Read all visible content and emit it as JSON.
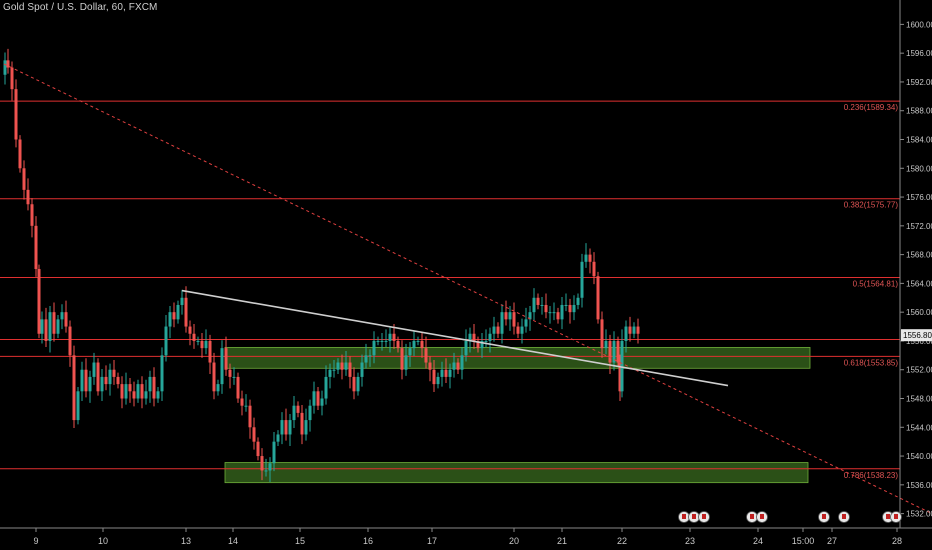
{
  "header": {
    "title": "Gold Spot / U.S. Dollar, 60, FXCM"
  },
  "colors": {
    "background": "#000000",
    "up": "#26a69a",
    "down": "#ef5350",
    "zone_fill": "#3a6b1f",
    "zone_border": "#6fae3a",
    "fib_line": "#e03030",
    "trend_line": "#cfcfcf",
    "dashed_line": "#e04040",
    "price_tag": "#e8e8e8"
  },
  "current_price": "1556.80",
  "chart_data": {
    "type": "candlestick",
    "title": "Gold Spot / U.S. Dollar, 60, FXCM",
    "ylim": [
      1530,
      1602
    ],
    "y_ticks": [
      1532,
      1536,
      1540,
      1544,
      1548,
      1552,
      1556,
      1560,
      1564,
      1568,
      1572,
      1576,
      1580,
      1584,
      1588,
      1592,
      1596,
      1600
    ],
    "x_ticks": [
      "9",
      "10",
      "13",
      "14",
      "15",
      "16",
      "17",
      "20",
      "21",
      "22",
      "23",
      "24",
      "15:00",
      "27",
      "28"
    ],
    "fib_levels": [
      {
        "label": "0.236(1589.34)",
        "price": 1589.34
      },
      {
        "label": "0.382(1575.77)",
        "price": 1575.77
      },
      {
        "label": "0.5(1564.81)",
        "price": 1564.81
      },
      {
        "label": "0.618(1553.85)",
        "price": 1553.85
      },
      {
        "label": "0.786(1538.23)",
        "price": 1538.23
      }
    ],
    "extra_levels": [
      1556.2
    ],
    "zones": [
      {
        "name": "upper-zone",
        "from": 1552.2,
        "to": 1555.1
      },
      {
        "name": "lower-zone",
        "from": 1536.3,
        "to": 1539.1
      }
    ],
    "path_points": [
      [
        0,
        1593
      ],
      [
        3,
        1595
      ],
      [
        6,
        1594
      ],
      [
        10,
        1591
      ],
      [
        14,
        1584
      ],
      [
        18,
        1580
      ],
      [
        22,
        1577
      ],
      [
        26,
        1575
      ],
      [
        30,
        1572
      ],
      [
        34,
        1566
      ],
      [
        37,
        1557
      ],
      [
        40,
        1559
      ],
      [
        44,
        1556
      ],
      [
        48,
        1560
      ],
      [
        52,
        1557
      ],
      [
        56,
        1559
      ],
      [
        60,
        1560
      ],
      [
        64,
        1558
      ],
      [
        68,
        1554
      ],
      [
        72,
        1545
      ],
      [
        76,
        1549
      ],
      [
        80,
        1552
      ],
      [
        84,
        1549
      ],
      [
        88,
        1551
      ],
      [
        92,
        1553
      ],
      [
        96,
        1549
      ],
      [
        100,
        1551
      ],
      [
        104,
        1550
      ],
      [
        108,
        1552
      ],
      [
        112,
        1551
      ],
      [
        116,
        1550
      ],
      [
        120,
        1548
      ],
      [
        124,
        1550
      ],
      [
        128,
        1549
      ],
      [
        132,
        1548
      ],
      [
        136,
        1550
      ],
      [
        140,
        1548
      ],
      [
        144,
        1549
      ],
      [
        148,
        1551
      ],
      [
        152,
        1548
      ],
      [
        156,
        1549
      ],
      [
        160,
        1554
      ],
      [
        164,
        1558
      ],
      [
        168,
        1560
      ],
      [
        172,
        1559
      ],
      [
        176,
        1561
      ],
      [
        180,
        1562
      ],
      [
        184,
        1558
      ],
      [
        188,
        1557
      ],
      [
        192,
        1556
      ],
      [
        196,
        1556
      ],
      [
        200,
        1555
      ],
      [
        204,
        1556
      ],
      [
        208,
        1553
      ],
      [
        212,
        1549
      ],
      [
        216,
        1550
      ],
      [
        220,
        1555
      ],
      [
        224,
        1552
      ],
      [
        228,
        1551
      ],
      [
        232,
        1551
      ],
      [
        236,
        1548
      ],
      [
        240,
        1547
      ],
      [
        244,
        1547
      ],
      [
        248,
        1544
      ],
      [
        252,
        1542
      ],
      [
        256,
        1540
      ],
      [
        260,
        1538
      ],
      [
        264,
        1538
      ],
      [
        268,
        1539
      ],
      [
        272,
        1542
      ],
      [
        276,
        1543
      ],
      [
        280,
        1545
      ],
      [
        284,
        1543
      ],
      [
        288,
        1545
      ],
      [
        292,
        1547
      ],
      [
        296,
        1546
      ],
      [
        300,
        1543
      ],
      [
        304,
        1545
      ],
      [
        308,
        1547
      ],
      [
        312,
        1549
      ],
      [
        316,
        1547
      ],
      [
        320,
        1548
      ],
      [
        324,
        1551
      ],
      [
        328,
        1552
      ],
      [
        332,
        1552
      ],
      [
        336,
        1553
      ],
      [
        340,
        1552
      ],
      [
        344,
        1553
      ],
      [
        348,
        1551
      ],
      [
        352,
        1549
      ],
      [
        356,
        1551
      ],
      [
        360,
        1553
      ],
      [
        364,
        1554
      ],
      [
        368,
        1554
      ],
      [
        372,
        1556
      ],
      [
        376,
        1556
      ],
      [
        380,
        1556
      ],
      [
        384,
        1556
      ],
      [
        388,
        1557
      ],
      [
        392,
        1556
      ],
      [
        396,
        1555
      ],
      [
        400,
        1552
      ],
      [
        404,
        1554
      ],
      [
        408,
        1555
      ],
      [
        412,
        1556
      ],
      [
        416,
        1556
      ],
      [
        420,
        1555
      ],
      [
        424,
        1553
      ],
      [
        428,
        1552
      ],
      [
        432,
        1550
      ],
      [
        436,
        1551
      ],
      [
        440,
        1552
      ],
      [
        444,
        1551
      ],
      [
        448,
        1552
      ],
      [
        452,
        1553
      ],
      [
        456,
        1552
      ],
      [
        460,
        1554
      ],
      [
        464,
        1556
      ],
      [
        468,
        1557
      ],
      [
        472,
        1556
      ],
      [
        476,
        1555
      ],
      [
        480,
        1556
      ],
      [
        484,
        1556
      ],
      [
        488,
        1557
      ],
      [
        492,
        1558
      ],
      [
        496,
        1557
      ],
      [
        500,
        1560
      ],
      [
        504,
        1559
      ],
      [
        508,
        1560
      ],
      [
        512,
        1558
      ],
      [
        516,
        1557
      ],
      [
        520,
        1558
      ],
      [
        524,
        1559
      ],
      [
        528,
        1560
      ],
      [
        532,
        1562
      ],
      [
        536,
        1561
      ],
      [
        540,
        1561
      ],
      [
        544,
        1560
      ],
      [
        548,
        1560
      ],
      [
        552,
        1560
      ],
      [
        556,
        1559
      ],
      [
        560,
        1561
      ],
      [
        564,
        1561
      ],
      [
        568,
        1560
      ],
      [
        572,
        1561
      ],
      [
        576,
        1562
      ],
      [
        580,
        1567
      ],
      [
        584,
        1568
      ],
      [
        588,
        1567
      ],
      [
        592,
        1565
      ],
      [
        596,
        1559
      ],
      [
        600,
        1555
      ],
      [
        604,
        1556
      ],
      [
        608,
        1553
      ],
      [
        612,
        1556
      ],
      [
        616,
        1553
      ],
      [
        618,
        1549
      ],
      [
        620,
        1556
      ],
      [
        624,
        1558
      ],
      [
        628,
        1557
      ],
      [
        632,
        1558
      ],
      [
        636,
        1557
      ]
    ]
  }
}
